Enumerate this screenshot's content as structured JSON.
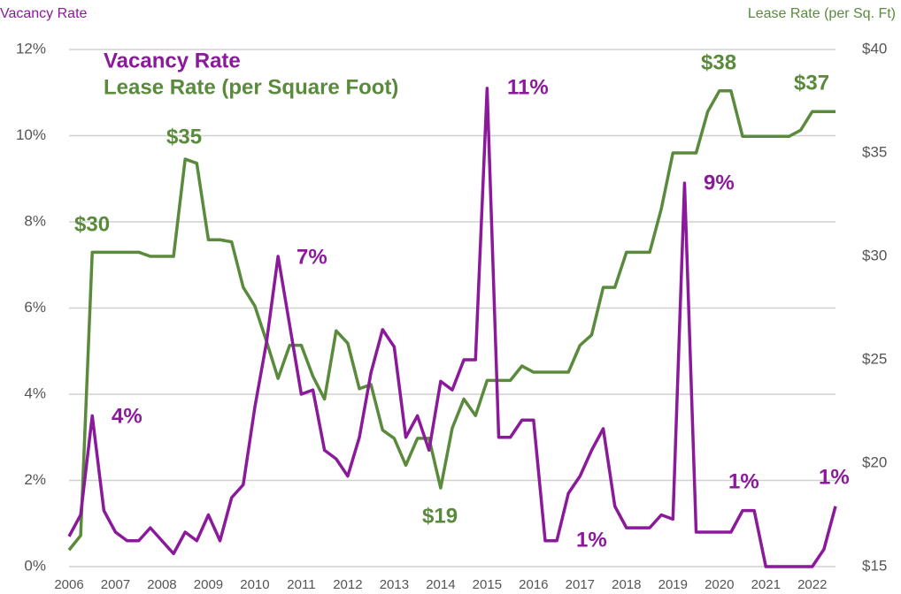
{
  "chart_data": {
    "type": "line",
    "y_label": "Vacancy Rate",
    "y2_label": "Lease Rate (per Sq. Ft)",
    "x": [
      2006,
      2006.25,
      2006.5,
      2006.75,
      2007,
      2007.25,
      2007.5,
      2007.75,
      2008,
      2008.25,
      2008.5,
      2008.75,
      2009,
      2009.25,
      2009.5,
      2009.75,
      2010,
      2010.25,
      2010.5,
      2010.75,
      2011,
      2011.25,
      2011.5,
      2011.75,
      2012,
      2012.25,
      2012.5,
      2012.75,
      2013,
      2013.25,
      2013.5,
      2013.75,
      2014,
      2014.25,
      2014.5,
      2014.75,
      2015,
      2015.25,
      2015.5,
      2015.75,
      2016,
      2016.25,
      2016.5,
      2016.75,
      2017,
      2017.25,
      2017.5,
      2017.75,
      2018,
      2018.25,
      2018.5,
      2018.75,
      2019,
      2019.25,
      2019.5,
      2019.75,
      2020,
      2020.25,
      2020.5,
      2020.75,
      2021,
      2021.25,
      2021.5,
      2021.75,
      2022,
      2022.25,
      2022.5
    ],
    "xlim": [
      2006,
      2022.5
    ],
    "xticks": [
      2006,
      2007,
      2008,
      2009,
      2010,
      2011,
      2012,
      2013,
      2014,
      2015,
      2016,
      2017,
      2018,
      2019,
      2020,
      2021,
      2022
    ],
    "ylim": [
      0,
      12
    ],
    "yticks": [
      {
        "value": 0,
        "label": "0%"
      },
      {
        "value": 2,
        "label": "2%"
      },
      {
        "value": 4,
        "label": "4%"
      },
      {
        "value": 6,
        "label": "6%"
      },
      {
        "value": 8,
        "label": "8%"
      },
      {
        "value": 10,
        "label": "10%"
      },
      {
        "value": 12,
        "label": "12%"
      }
    ],
    "y2lim": [
      15,
      40
    ],
    "y2ticks": [
      {
        "value": 15,
        "label": "$15"
      },
      {
        "value": 20,
        "label": "$20"
      },
      {
        "value": 25,
        "label": "$25"
      },
      {
        "value": 30,
        "label": "$30"
      },
      {
        "value": 35,
        "label": "$35"
      },
      {
        "value": 40,
        "label": "$40"
      }
    ],
    "grid": true,
    "legend": "upper left",
    "series": [
      {
        "name": "Vacancy Rate",
        "color": "#8b1a9b",
        "values": [
          0.7,
          1.2,
          3.5,
          1.3,
          0.8,
          0.6,
          0.6,
          0.9,
          0.6,
          0.3,
          0.8,
          0.6,
          1.2,
          0.6,
          1.6,
          1.9,
          3.7,
          5.2,
          7.2,
          5.6,
          4.0,
          4.1,
          2.7,
          2.5,
          2.1,
          3.0,
          4.5,
          5.5,
          5.1,
          3.0,
          3.5,
          2.7,
          4.3,
          4.1,
          4.8,
          4.8,
          11.1,
          3.0,
          3.0,
          3.4,
          3.4,
          0.6,
          0.6,
          1.7,
          2.1,
          2.7,
          3.2,
          1.4,
          0.9,
          0.9,
          0.9,
          1.2,
          1.1,
          8.9,
          0.8,
          0.8,
          0.8,
          0.8,
          1.3,
          1.3,
          0,
          0,
          0,
          0,
          0,
          0.4,
          1.4
        ],
        "annotations": [
          "4%",
          "7%",
          "11%",
          "1%",
          "9%",
          "1%",
          "1%"
        ]
      },
      {
        "name": "Lease Rate (per Square Foot)",
        "color": "#5a8a3c",
        "axis": "y2",
        "values": [
          15.8,
          16.5,
          30.2,
          30.2,
          30.2,
          30.2,
          30.2,
          30.0,
          30.0,
          30.0,
          34.7,
          34.5,
          30.8,
          30.8,
          30.7,
          28.5,
          27.6,
          25.9,
          24.1,
          25.7,
          25.7,
          24.2,
          23.1,
          26.4,
          25.8,
          23.6,
          23.8,
          21.6,
          21.2,
          19.9,
          21.2,
          21.2,
          18.8,
          21.7,
          23.1,
          22.3,
          24.0,
          24.0,
          24.0,
          24.7,
          24.4,
          24.4,
          24.4,
          24.4,
          25.7,
          26.2,
          28.5,
          28.5,
          30.2,
          30.2,
          30.2,
          32.3,
          35.0,
          35.0,
          35.0,
          37.0,
          38.0,
          38.0,
          35.8,
          35.8,
          35.8,
          35.8,
          35.8,
          36.1,
          37.0,
          37.0,
          37.0
        ],
        "annotations": [
          "$30",
          "$35",
          "$19",
          "$38",
          "$37"
        ]
      }
    ]
  }
}
